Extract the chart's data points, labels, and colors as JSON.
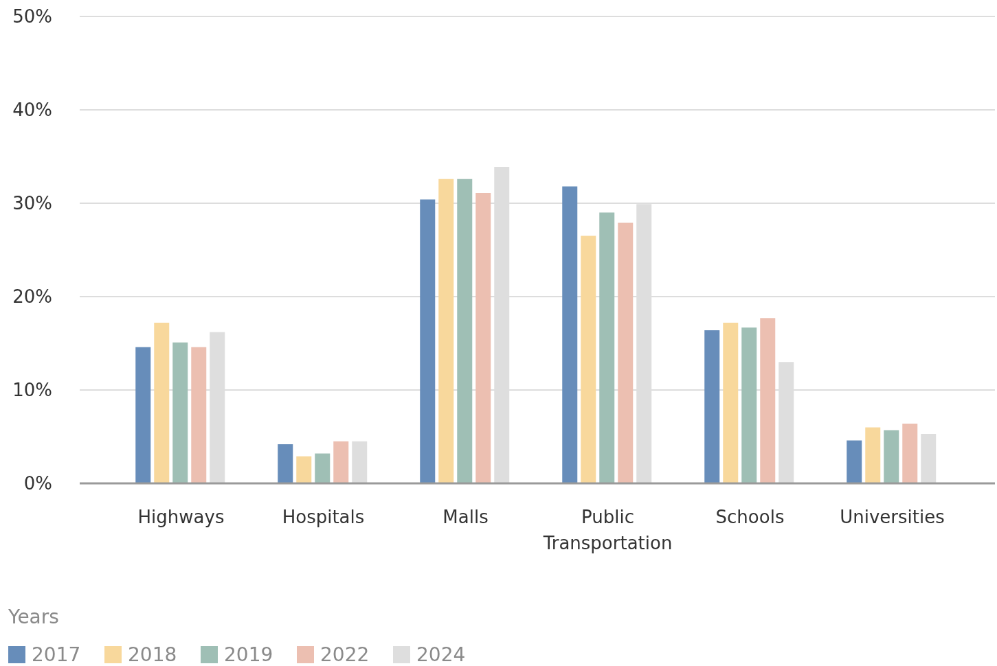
{
  "chart_data": {
    "type": "bar",
    "categories": [
      "Highways",
      "Hospitals",
      "Malls",
      "Public Transportation",
      "Schools",
      "Universities"
    ],
    "series": [
      {
        "name": "2017",
        "color": "#678dba",
        "values": [
          14.6,
          4.2,
          30.4,
          31.8,
          16.4,
          4.6
        ]
      },
      {
        "name": "2018",
        "color": "#f8d89c",
        "values": [
          17.2,
          2.9,
          32.6,
          26.5,
          17.2,
          6.0
        ]
      },
      {
        "name": "2019",
        "color": "#9fbfb5",
        "values": [
          15.1,
          3.2,
          32.6,
          29.0,
          16.7,
          5.7
        ]
      },
      {
        "name": "2022",
        "color": "#ecbfb1",
        "values": [
          14.6,
          4.5,
          31.1,
          27.9,
          17.7,
          6.4
        ]
      },
      {
        "name": "2024",
        "color": "#dedede",
        "values": [
          16.2,
          4.5,
          33.9,
          29.9,
          13.0,
          5.3
        ]
      }
    ],
    "ylim": [
      0,
      50
    ],
    "yticks": [
      {
        "value": 0,
        "label": "0%"
      },
      {
        "value": 10,
        "label": "10%"
      },
      {
        "value": 20,
        "label": "20%"
      },
      {
        "value": 30,
        "label": "30%"
      },
      {
        "value": 40,
        "label": "40%"
      },
      {
        "value": 50,
        "label": "50%"
      }
    ],
    "grid": "y",
    "legend": "bottom left",
    "legend_title": "Years"
  }
}
